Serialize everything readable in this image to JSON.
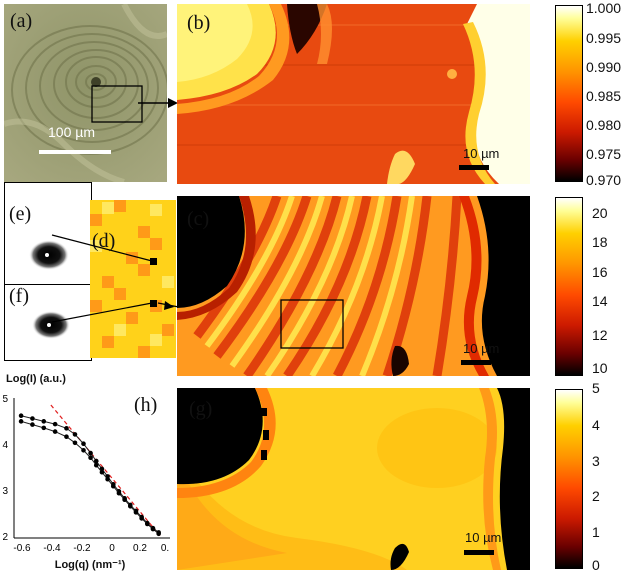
{
  "panels": {
    "a": {
      "label": "(a)",
      "scalebar_label": "100 µm"
    },
    "b": {
      "label": "(b)",
      "scalebar_label": "10 µm"
    },
    "c": {
      "label": "(c)",
      "scalebar_label": "10 µm"
    },
    "d": {
      "label": "(d)"
    },
    "e": {
      "label": "(e)"
    },
    "f": {
      "label": "(f)"
    },
    "g": {
      "label": "(g)",
      "scalebar_label": "10 µm"
    },
    "h": {
      "label": "(h)"
    }
  },
  "colorbars": [
    {
      "ticks": [
        "1.000",
        "0.995",
        "0.990",
        "0.985",
        "0.980",
        "0.975",
        "0.970"
      ]
    },
    {
      "ticks": [
        "20",
        "18",
        "16",
        "14",
        "12",
        "10"
      ]
    },
    {
      "ticks": [
        "5",
        "4",
        "3",
        "2",
        "1",
        "0"
      ]
    }
  ],
  "colors": {
    "heat_dark": "#000000",
    "heat_red": "#e03000",
    "heat_orange": "#ff8a00",
    "heat_yellow": "#ffe000",
    "fit_line": "#e02020"
  },
  "chart_data": {
    "type": "scatter",
    "xlabel": "Log(q) (nm⁻¹)",
    "ylabel": "Log(I) (a.u.)",
    "xlim": [
      -0.68,
      0.42
    ],
    "ylim": [
      2,
      5
    ],
    "x_ticks": [
      "-0.6",
      "-0.4",
      "-0.2",
      "0",
      "0.2",
      "0."
    ],
    "y_ticks": [
      "5",
      "4",
      "3",
      "2"
    ],
    "series": [
      {
        "x": [
          -0.63,
          -0.55,
          -0.47,
          -0.39,
          -0.31,
          -0.25,
          -0.19,
          -0.14,
          -0.1,
          -0.06,
          -0.02,
          0.02,
          0.06,
          0.1,
          0.14,
          0.18,
          0.22,
          0.26,
          0.3,
          0.34
        ],
        "y": [
          4.62,
          4.56,
          4.5,
          4.44,
          4.35,
          4.22,
          4.02,
          3.82,
          3.65,
          3.48,
          3.32,
          3.15,
          3.0,
          2.85,
          2.71,
          2.58,
          2.45,
          2.32,
          2.21,
          2.12
        ]
      },
      {
        "x": [
          -0.63,
          -0.55,
          -0.47,
          -0.39,
          -0.31,
          -0.25,
          -0.19,
          -0.14,
          -0.1,
          -0.06,
          -0.02,
          0.02,
          0.06,
          0.1,
          0.14,
          0.18,
          0.22,
          0.26,
          0.3,
          0.34
        ],
        "y": [
          4.5,
          4.43,
          4.36,
          4.28,
          4.17,
          4.04,
          3.88,
          3.72,
          3.56,
          3.41,
          3.26,
          3.11,
          2.96,
          2.82,
          2.68,
          2.55,
          2.42,
          2.3,
          2.19,
          2.09
        ]
      }
    ],
    "fit_line": {
      "x": [
        -0.42,
        0.35
      ],
      "y": [
        4.85,
        2.05
      ]
    }
  }
}
